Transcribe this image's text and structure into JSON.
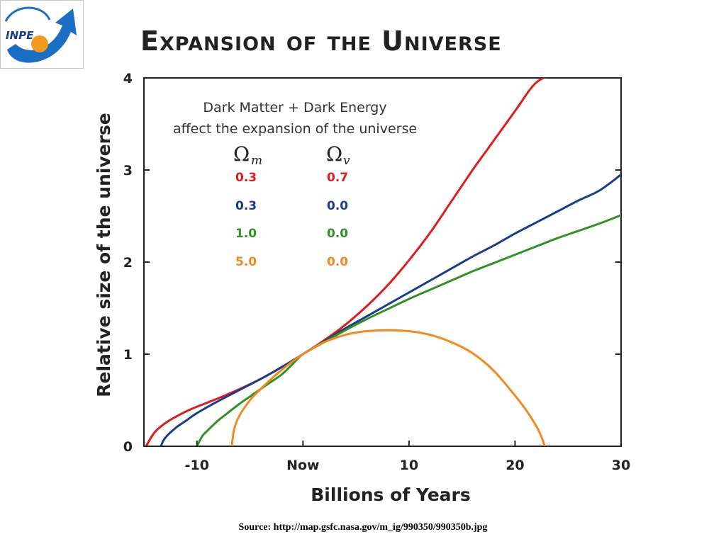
{
  "logo": {
    "text": "INPE",
    "icon": "inpe-logo-arrow-sun"
  },
  "title": "Expansion of the Universe",
  "source": "Source: http://map.gsfc.nasa.gov/m_ig/990350/990350b.jpg",
  "chart_data": {
    "type": "line",
    "title": "Expansion of the Universe",
    "xlabel": "Billions of Years",
    "ylabel": "Relative size of the universe",
    "xlim": [
      -15,
      30
    ],
    "ylim": [
      0,
      4
    ],
    "xticks": [
      {
        "value": -10,
        "label": "-10"
      },
      {
        "value": 0,
        "label": "Now"
      },
      {
        "value": 10,
        "label": "10"
      },
      {
        "value": 20,
        "label": "20"
      },
      {
        "value": 30,
        "label": "30"
      }
    ],
    "yticks": [
      {
        "value": 0,
        "label": "0"
      },
      {
        "value": 1,
        "label": "1"
      },
      {
        "value": 2,
        "label": "2"
      },
      {
        "value": 3,
        "label": "3"
      },
      {
        "value": 4,
        "label": "4"
      }
    ],
    "annotation": [
      "Dark Matter + Dark Energy",
      "affect the expansion of the universe"
    ],
    "legend_headers": {
      "omega_symbol": "Ω",
      "m_sub": "m",
      "v_sub": "v"
    },
    "series": [
      {
        "omega_m": "0.3",
        "omega_v": "0.7",
        "color": "#e01b1b",
        "x": [
          -14.8,
          -14,
          -13,
          -12,
          -11,
          -10,
          -8,
          -6,
          -4,
          -2,
          0,
          2,
          4,
          6,
          8,
          10,
          12,
          14,
          16,
          18,
          20,
          22,
          24
        ],
        "y": [
          0,
          0.15,
          0.25,
          0.32,
          0.38,
          0.43,
          0.52,
          0.62,
          0.73,
          0.86,
          1.0,
          1.15,
          1.32,
          1.52,
          1.75,
          2.02,
          2.32,
          2.66,
          3.0,
          3.32,
          3.64,
          3.95,
          4.05
        ]
      },
      {
        "omega_m": "0.3",
        "omega_v": "0.0",
        "color": "#1a3c8f",
        "x": [
          -13.4,
          -13,
          -12,
          -11,
          -10,
          -8,
          -6,
          -4,
          -2,
          0,
          2,
          4,
          6,
          8,
          10,
          12,
          14,
          16,
          18,
          20,
          22,
          24,
          26,
          28,
          30
        ],
        "y": [
          0,
          0.09,
          0.2,
          0.28,
          0.36,
          0.49,
          0.61,
          0.73,
          0.86,
          1.0,
          1.14,
          1.28,
          1.41,
          1.54,
          1.67,
          1.8,
          1.93,
          2.06,
          2.18,
          2.31,
          2.43,
          2.55,
          2.67,
          2.78,
          2.95
        ]
      },
      {
        "omega_m": "1.0",
        "omega_v": "0.0",
        "color": "#2e9324",
        "x": [
          -10,
          -9.5,
          -9,
          -8,
          -7,
          -6,
          -5,
          -4,
          -3,
          -2,
          -1,
          0,
          2,
          4,
          6,
          8,
          10,
          12,
          14,
          16,
          18,
          20,
          22,
          24,
          26,
          28,
          30
        ],
        "y": [
          0,
          0.11,
          0.17,
          0.28,
          0.37,
          0.46,
          0.54,
          0.62,
          0.7,
          0.78,
          0.89,
          1.0,
          1.13,
          1.26,
          1.38,
          1.49,
          1.6,
          1.7,
          1.8,
          1.9,
          1.99,
          2.08,
          2.17,
          2.26,
          2.34,
          2.42,
          2.51
        ]
      },
      {
        "omega_m": "5.0",
        "omega_v": "0.0",
        "color": "#f2881f",
        "x": [
          -6.7,
          -6.5,
          -6,
          -5,
          -4,
          -3,
          -2,
          -1,
          0,
          1,
          2,
          4,
          6,
          8,
          10,
          12,
          14,
          16,
          18,
          20,
          21,
          22,
          22.5,
          22.8
        ],
        "y": [
          0,
          0.18,
          0.33,
          0.5,
          0.62,
          0.73,
          0.83,
          0.92,
          1.0,
          1.07,
          1.13,
          1.21,
          1.25,
          1.26,
          1.25,
          1.21,
          1.13,
          1.01,
          0.82,
          0.55,
          0.4,
          0.22,
          0.1,
          0
        ]
      }
    ],
    "grid": false,
    "legend_placement": "top-left inside plot"
  }
}
